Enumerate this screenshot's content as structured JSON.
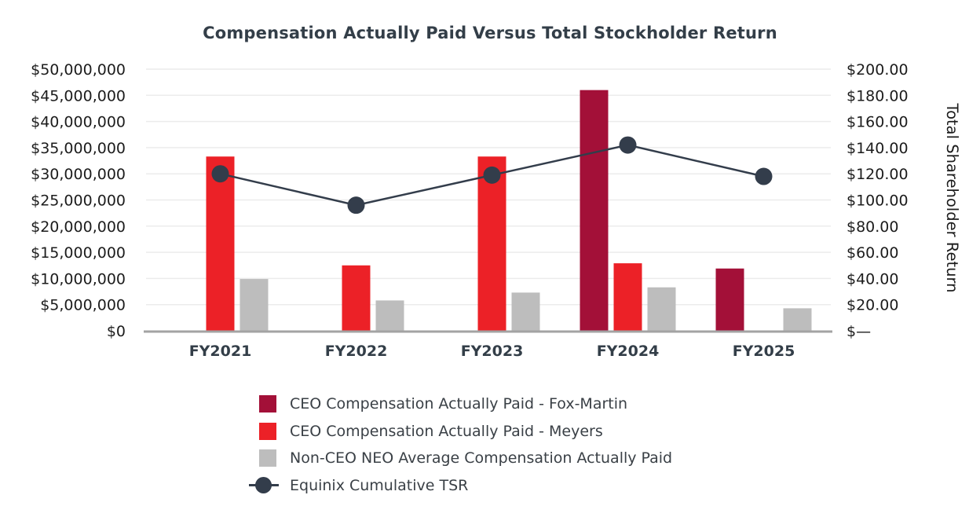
{
  "title": "Compensation Actually Paid Versus Total Stockholder Return",
  "colors": {
    "fox_martin": "#A31038",
    "meyers": "#EC2127",
    "non_ceo": "#BDBDBD",
    "tsr": "#333D4B",
    "title_text": "#333E48",
    "axis_text": "#1C1C1C",
    "x_label_text": "#333E48",
    "gridline": "#ECECEC",
    "axis_line": "#A3A3A3",
    "legend_text": "#3A4046",
    "background": "#FFFFFF"
  },
  "legend": {
    "items": [
      {
        "label": "CEO Compensation Actually Paid - Fox-Martin",
        "marker": "square",
        "color_key": "fox_martin"
      },
      {
        "label": "CEO Compensation Actually Paid - Meyers",
        "marker": "square",
        "color_key": "meyers"
      },
      {
        "label": "Non-CEO NEO Average Compensation Actually Paid",
        "marker": "square",
        "color_key": "non_ceo"
      },
      {
        "label": "Equinix Cumulative TSR",
        "marker": "line-dot",
        "color_key": "tsr"
      }
    ]
  },
  "chart_data": {
    "type": "bar",
    "subtype": "grouped-bar-with-line-overlay",
    "title": "Compensation Actually Paid Versus Total Stockholder Return",
    "categories": [
      "FY2021",
      "FY2022",
      "FY2023",
      "FY2024",
      "FY2025"
    ],
    "series": [
      {
        "name": "CEO Compensation Actually Paid - Fox-Martin",
        "type": "bar",
        "axis": "left",
        "slot": "left",
        "color_key": "fox_martin",
        "values": [
          0,
          0,
          0,
          46000000,
          11900000
        ]
      },
      {
        "name": "CEO Compensation Actually Paid - Meyers",
        "type": "bar",
        "axis": "left",
        "slot": "center",
        "color_key": "meyers",
        "values": [
          33300000,
          12500000,
          33300000,
          12900000,
          0
        ]
      },
      {
        "name": "Non-CEO NEO Average Compensation Actually Paid",
        "type": "bar",
        "axis": "left",
        "slot": "right",
        "color_key": "non_ceo",
        "values": [
          9900000,
          5800000,
          7300000,
          8300000,
          4300000
        ]
      },
      {
        "name": "Equinix Cumulative TSR",
        "type": "line",
        "axis": "right",
        "color_key": "tsr",
        "values": [
          120,
          96,
          119,
          142,
          118
        ]
      }
    ],
    "left_axis": {
      "min": 0,
      "max": 50000000,
      "tick_step": 5000000,
      "ticks": [
        "$0",
        "$5,000,000",
        "$10,000,000",
        "$15,000,000",
        "$20,000,000",
        "$25,000,000",
        "$30,000,000",
        "$35,000,000",
        "$40,000,000",
        "$45,000,000",
        "$50,000,000"
      ]
    },
    "right_axis": {
      "min": 0,
      "max": 200,
      "tick_step": 20,
      "title": "Total Shareholder Return",
      "ticks": [
        "$—",
        "$20.00",
        "$40.00",
        "$60.00",
        "$80.00",
        "$100.00",
        "$120.00",
        "$140.00",
        "$160.00",
        "$180.00",
        "$200.00"
      ]
    },
    "grid": true,
    "legend_position": "bottom-left"
  }
}
